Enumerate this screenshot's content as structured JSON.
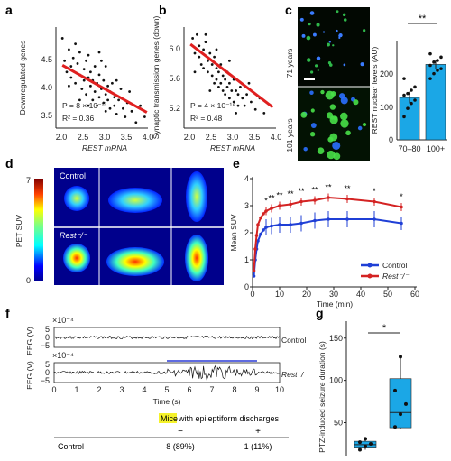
{
  "panels": {
    "a": {
      "label": "a",
      "ylabel": "Downregulated genes",
      "xlabel": "REST mRNA",
      "p": "P = 8 × 10⁻¹³",
      "r2": "R² = 0.36",
      "xticks": [
        "2.0",
        "2.5",
        "3.0",
        "3.5",
        "4.0"
      ],
      "yticks": [
        "3.5",
        "4.0",
        "4.5"
      ]
    },
    "b": {
      "label": "b",
      "ylabel": "Synaptic transmission genes (down)",
      "xlabel": "REST mRNA",
      "p": "P = 4 × 10⁻¹⁸",
      "r2": "R² = 0.48",
      "xticks": [
        "2.0",
        "2.5",
        "3.0",
        "3.5",
        "4.0"
      ],
      "yticks": [
        "5.2",
        "5.6",
        "6.0"
      ]
    },
    "c": {
      "label": "c",
      "img_top": "71 years",
      "img_bottom": "101 years",
      "ylabel": "REST nuclear levels (AU)",
      "yticks": [
        "0",
        "100",
        "200"
      ],
      "sig": "**"
    },
    "d": {
      "label": "d",
      "row1": "Control",
      "row2": "Rest⁻/⁻",
      "ylabel": "PET SUV",
      "scale_ticks": [
        "7",
        "0"
      ]
    },
    "e": {
      "label": "e",
      "ylabel": "Mean SUV",
      "xlabel": "Time (min)",
      "yticks": [
        "0",
        "1",
        "2",
        "3",
        "4"
      ],
      "xticks": [
        "0",
        "10",
        "20",
        "30",
        "40",
        "50",
        "60"
      ],
      "legend_control": "Control",
      "legend_rest": "Rest⁻/⁻",
      "stars": [
        "*",
        "**",
        "**",
        "**",
        "**",
        "**",
        "**",
        "**",
        "*",
        "*"
      ]
    },
    "f": {
      "label": "f",
      "ylab": "EEG (V)",
      "exp": "×10⁻⁴",
      "yt1": "5",
      "yt0": "0",
      "ytm": "−5",
      "trace1": "Control",
      "trace2": "Rest⁻/⁻",
      "xticks": [
        "0",
        "1",
        "2",
        "3",
        "4",
        "5",
        "6",
        "7",
        "8",
        "9",
        "10"
      ],
      "xlabel": "Time (s)",
      "table_title_highlight": "Mice",
      "table_title_rest": " with epileptiform discharges",
      "col_minus": "−",
      "col_plus": "+",
      "row_label": "Control",
      "row_minus": "8 (89%)",
      "row_plus": "1 (11%)"
    },
    "g": {
      "label": "g",
      "ylabel": "PTZ-induced seizure duration (s)",
      "yticks": [
        "50",
        "100",
        "150"
      ],
      "sig": "*"
    }
  },
  "chart_data": [
    {
      "type": "scatter",
      "panel": "a",
      "xlabel": "REST mRNA",
      "ylabel": "Downregulated genes",
      "xlim": [
        1.85,
        4.1
      ],
      "ylim": [
        3.1,
        4.9
      ],
      "fit": {
        "x": [
          2.0,
          3.95
        ],
        "y": [
          4.22,
          3.38
        ]
      },
      "points": [
        [
          2.05,
          4.3
        ],
        [
          2.1,
          4.1
        ],
        [
          2.15,
          4.5
        ],
        [
          2.2,
          4.2
        ],
        [
          2.2,
          4.0
        ],
        [
          2.25,
          4.35
        ],
        [
          2.3,
          4.6
        ],
        [
          2.3,
          3.9
        ],
        [
          2.35,
          4.25
        ],
        [
          2.4,
          4.05
        ],
        [
          2.4,
          4.45
        ],
        [
          2.45,
          3.8
        ],
        [
          2.5,
          4.15
        ],
        [
          2.5,
          3.95
        ],
        [
          2.55,
          4.3
        ],
        [
          2.55,
          3.7
        ],
        [
          2.6,
          4.0
        ],
        [
          2.6,
          4.4
        ],
        [
          2.65,
          3.85
        ],
        [
          2.65,
          4.1
        ],
        [
          2.7,
          3.6
        ],
        [
          2.7,
          3.95
        ],
        [
          2.75,
          4.2
        ],
        [
          2.75,
          3.75
        ],
        [
          2.8,
          3.9
        ],
        [
          2.8,
          3.5
        ],
        [
          2.85,
          4.05
        ],
        [
          2.85,
          3.65
        ],
        [
          2.9,
          3.8
        ],
        [
          2.9,
          4.3
        ],
        [
          2.95,
          3.55
        ],
        [
          2.95,
          3.95
        ],
        [
          3.0,
          3.7
        ],
        [
          3.0,
          3.4
        ],
        [
          3.05,
          3.85
        ],
        [
          3.05,
          3.6
        ],
        [
          3.1,
          3.45
        ],
        [
          3.1,
          3.75
        ],
        [
          3.15,
          3.9
        ],
        [
          3.2,
          3.5
        ],
        [
          3.2,
          3.65
        ],
        [
          3.25,
          3.35
        ],
        [
          3.3,
          3.6
        ],
        [
          3.35,
          3.8
        ],
        [
          3.4,
          3.45
        ],
        [
          3.45,
          3.3
        ],
        [
          3.5,
          3.55
        ],
        [
          3.6,
          3.4
        ],
        [
          3.7,
          3.2
        ],
        [
          3.8,
          3.5
        ],
        [
          3.9,
          3.3
        ],
        [
          2.0,
          4.7
        ],
        [
          2.6,
          3.5
        ],
        [
          3.0,
          4.2
        ],
        [
          2.4,
          3.6
        ],
        [
          3.55,
          3.75
        ],
        [
          2.15,
          3.85
        ],
        [
          2.85,
          4.45
        ],
        [
          3.25,
          3.95
        ]
      ]
    },
    {
      "type": "scatter",
      "panel": "b",
      "xlabel": "REST mRNA",
      "ylabel": "Synaptic transmission genes (down)",
      "xlim": [
        1.85,
        4.1
      ],
      "ylim": [
        5.0,
        6.35
      ],
      "fit": {
        "x": [
          2.0,
          3.9
        ],
        "y": [
          6.12,
          5.28
        ]
      },
      "points": [
        [
          2.05,
          6.2
        ],
        [
          2.1,
          6.0
        ],
        [
          2.15,
          6.25
        ],
        [
          2.2,
          5.95
        ],
        [
          2.2,
          6.1
        ],
        [
          2.25,
          5.85
        ],
        [
          2.3,
          6.05
        ],
        [
          2.3,
          5.8
        ],
        [
          2.35,
          6.15
        ],
        [
          2.4,
          5.9
        ],
        [
          2.4,
          5.75
        ],
        [
          2.45,
          6.0
        ],
        [
          2.5,
          5.7
        ],
        [
          2.5,
          5.85
        ],
        [
          2.55,
          5.95
        ],
        [
          2.55,
          5.6
        ],
        [
          2.6,
          5.8
        ],
        [
          2.6,
          5.65
        ],
        [
          2.65,
          5.75
        ],
        [
          2.65,
          5.55
        ],
        [
          2.7,
          5.85
        ],
        [
          2.7,
          5.6
        ],
        [
          2.75,
          5.7
        ],
        [
          2.75,
          5.5
        ],
        [
          2.8,
          5.65
        ],
        [
          2.8,
          5.45
        ],
        [
          2.85,
          5.75
        ],
        [
          2.85,
          5.55
        ],
        [
          2.9,
          5.6
        ],
        [
          2.9,
          5.4
        ],
        [
          2.95,
          5.5
        ],
        [
          3.0,
          5.65
        ],
        [
          3.0,
          5.35
        ],
        [
          3.05,
          5.5
        ],
        [
          3.1,
          5.45
        ],
        [
          3.1,
          5.3
        ],
        [
          3.15,
          5.55
        ],
        [
          3.2,
          5.4
        ],
        [
          3.25,
          5.3
        ],
        [
          3.3,
          5.45
        ],
        [
          3.4,
          5.35
        ],
        [
          3.5,
          5.25
        ],
        [
          3.6,
          5.4
        ],
        [
          3.7,
          5.2
        ],
        [
          2.1,
          5.75
        ],
        [
          2.35,
          6.25
        ],
        [
          2.6,
          6.05
        ],
        [
          2.9,
          5.9
        ],
        [
          3.35,
          5.6
        ],
        [
          2.45,
          5.5
        ],
        [
          3.05,
          5.2
        ]
      ]
    },
    {
      "type": "bar",
      "panel": "c",
      "categories": [
        "70–80",
        "100+"
      ],
      "values": [
        128,
        228
      ],
      "errors": [
        18,
        14
      ],
      "ylim": [
        0,
        300
      ],
      "points": [
        [
          70,
          95,
          110,
          120,
          135,
          140,
          150,
          160,
          185
        ],
        [
          185,
          200,
          210,
          215,
          225,
          235,
          240,
          250,
          260
        ]
      ]
    },
    {
      "type": "line",
      "panel": "e",
      "xlabel": "Time (min)",
      "ylabel": "Mean SUV",
      "xlim": [
        0,
        60
      ],
      "ylim": [
        0,
        4
      ],
      "x": [
        0.5,
        1,
        1.5,
        2,
        3,
        4,
        5,
        7,
        10,
        14,
        18,
        23,
        28,
        35,
        45,
        55
      ],
      "series": [
        {
          "name": "Control",
          "color": "#1f3fd6",
          "values": [
            0.4,
            1.0,
            1.4,
            1.7,
            1.95,
            2.1,
            2.2,
            2.25,
            2.3,
            2.3,
            2.35,
            2.45,
            2.5,
            2.5,
            2.5,
            2.35
          ],
          "errors": [
            0.3,
            0.3,
            0.3,
            0.3,
            0.3,
            0.3,
            0.3,
            0.3,
            0.3,
            0.3,
            0.3,
            0.3,
            0.3,
            0.3,
            0.3,
            0.25
          ]
        },
        {
          "name": "Rest⁻/⁻",
          "color": "#d42323",
          "values": [
            0.6,
            1.4,
            1.9,
            2.3,
            2.55,
            2.7,
            2.8,
            2.9,
            3.0,
            3.05,
            3.15,
            3.2,
            3.3,
            3.25,
            3.15,
            2.95
          ],
          "errors": [
            0.15,
            0.15,
            0.15,
            0.15,
            0.15,
            0.15,
            0.15,
            0.15,
            0.15,
            0.15,
            0.15,
            0.15,
            0.15,
            0.15,
            0.15,
            0.15
          ]
        }
      ],
      "star_x": [
        5,
        7,
        10,
        14,
        18,
        23,
        28,
        35,
        45,
        55
      ]
    },
    {
      "type": "box",
      "panel": "g",
      "ylim": [
        10,
        170
      ],
      "boxes": [
        {
          "color": "#1ba7e6",
          "min": 18,
          "q1": 20,
          "median": 24,
          "q3": 28,
          "max": 32,
          "points": [
            18,
            22,
            25,
            27,
            31
          ]
        },
        {
          "color": "#1ba7e6",
          "min": 42,
          "q1": 44,
          "median": 62,
          "q3": 102,
          "max": 130,
          "points": [
            45,
            60,
            72,
            88,
            128
          ]
        }
      ]
    }
  ],
  "colors": {
    "fit": "#e02020",
    "bar": "#1ba7e6",
    "control": "#1f3fd6",
    "rest": "#d42323",
    "highlight": "#f5f22a"
  }
}
